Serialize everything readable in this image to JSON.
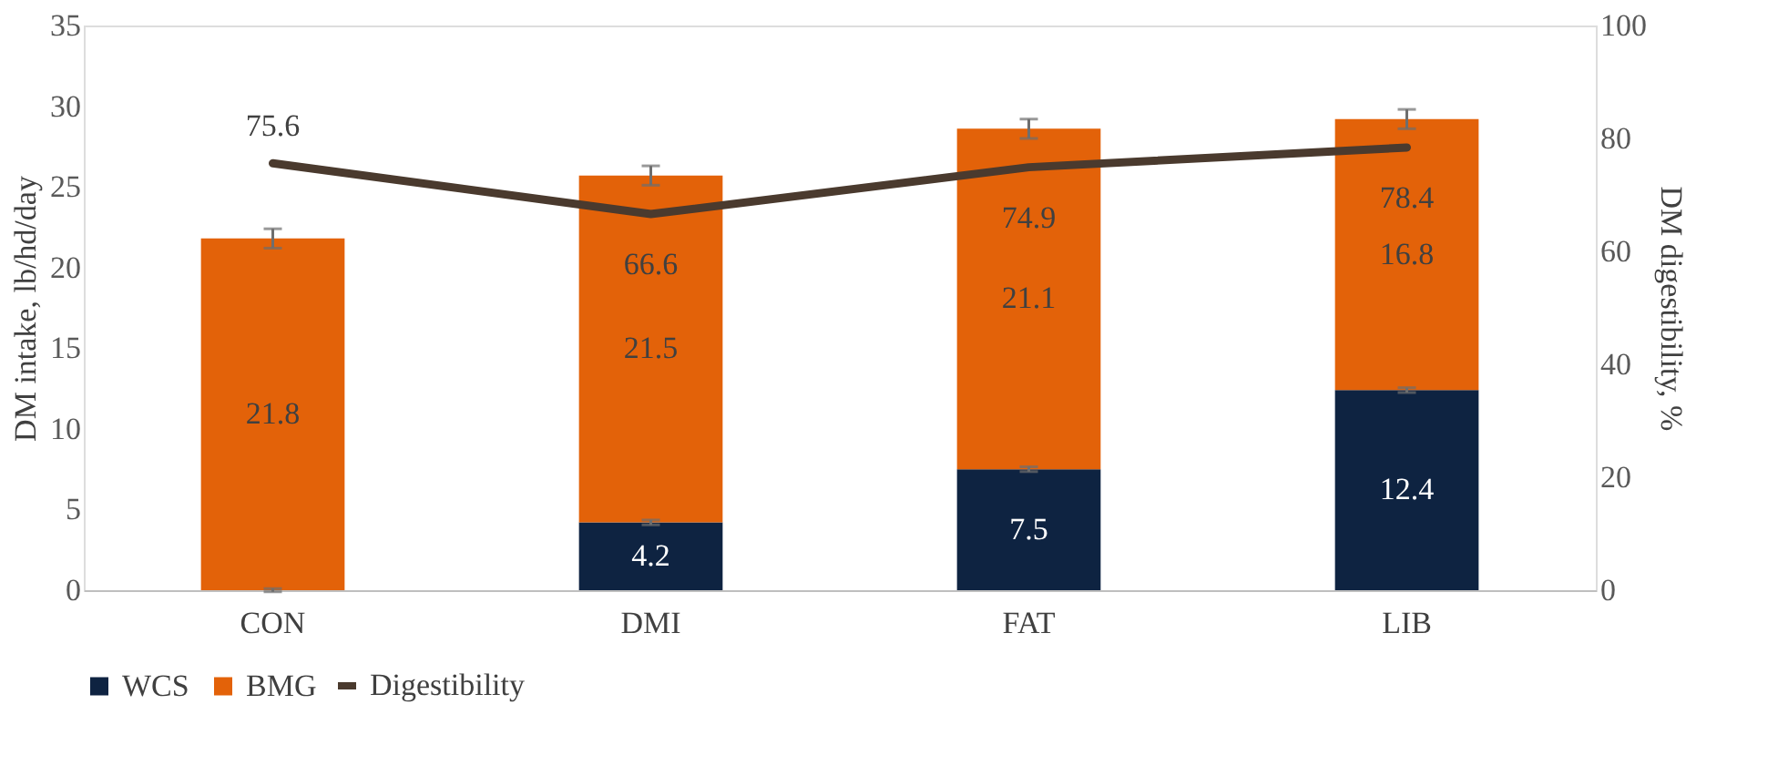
{
  "chart_data": {
    "type": "bar",
    "stacked": true,
    "categories": [
      "CON",
      "DMI",
      "FAT",
      "LIB"
    ],
    "ylabel": "DM intake, lb/hd/day",
    "y2label": "DM digestibility, %",
    "ylim": [
      0,
      35
    ],
    "yticks": [
      0,
      5,
      10,
      15,
      20,
      25,
      30,
      35
    ],
    "y2lim": [
      0,
      100
    ],
    "y2ticks": [
      0,
      20,
      40,
      60,
      80,
      100
    ],
    "legend": "bottom",
    "grid": false,
    "series": [
      {
        "name": "WCS",
        "color": "#0e2341",
        "values": [
          0,
          4.2,
          7.5,
          12.4
        ],
        "errors": [
          0.1,
          0.15,
          0.15,
          0.15
        ],
        "value_labels": [
          null,
          "4.2",
          "7.5",
          "12.4"
        ]
      },
      {
        "name": "BMG",
        "color": "#e36209",
        "values": [
          21.8,
          21.5,
          21.1,
          16.8
        ],
        "errors": [
          0.6,
          0.6,
          0.6,
          0.6
        ],
        "value_labels": [
          "21.8",
          "21.5",
          "21.1",
          "16.8"
        ]
      },
      {
        "name": "Digestibility",
        "type": "line",
        "axis": "y2",
        "color": "#4a3a2e",
        "values": [
          75.6,
          66.6,
          74.9,
          78.4
        ],
        "line_style": "solid",
        "marker": "none",
        "value_labels": [
          "75.6",
          "66.6",
          "74.9",
          "78.4"
        ]
      }
    ]
  }
}
